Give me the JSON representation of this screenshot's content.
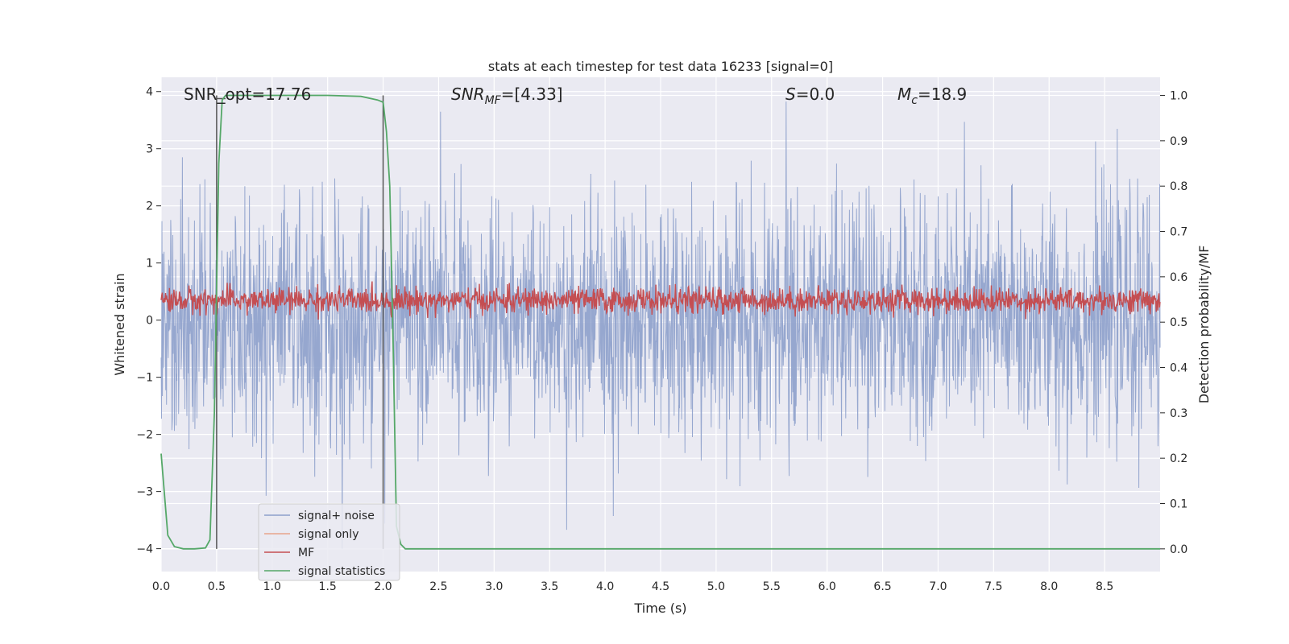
{
  "chart_data": {
    "type": "line",
    "title": "stats at each timestep for test data 16233 [signal=0]",
    "xlabel": "Time (s)",
    "ylabel_left": "Whitened strain",
    "ylabel_right": "Detection probability/MF",
    "xlim": [
      0.0,
      9.0
    ],
    "ylim_left": [
      -4.4,
      4.25
    ],
    "ylim_right": [
      -0.05,
      1.04
    ],
    "xticks": [
      "0.0",
      "0.5",
      "1.0",
      "1.5",
      "2.0",
      "2.5",
      "3.0",
      "3.5",
      "4.0",
      "4.5",
      "5.0",
      "5.5",
      "6.0",
      "6.5",
      "7.0",
      "7.5",
      "8.0",
      "8.5"
    ],
    "yticks_left": [
      "4",
      "3",
      "2",
      "1",
      "0",
      "−1",
      "−2",
      "−3",
      "−4"
    ],
    "yticks_right": [
      "1.0",
      "0.9",
      "0.8",
      "0.7",
      "0.6",
      "0.5",
      "0.4",
      "0.3",
      "0.2",
      "0.1",
      "0.0"
    ],
    "grid": true,
    "legend_position": "lower-left",
    "annotations": {
      "snr_opt": "SNR_opt=17.76",
      "snr_mf_main": "SNR",
      "snr_mf_sub": "MF",
      "snr_mf_value": "=[4.33]",
      "s_symbol": "S",
      "s_value": "=0.0",
      "mc_main": "M",
      "mc_sub": "c",
      "mc_value": "=18.9"
    },
    "series": [
      {
        "name": "signal+ noise",
        "color": "#8da0cb",
        "axis": "left",
        "description_values": "whitened noise, approx range [-4, 3.9]"
      },
      {
        "name": "signal only",
        "color": "#e8a58b",
        "axis": "left"
      },
      {
        "name": "MF",
        "color": "#c44e52",
        "axis": "right",
        "approx_range": [
          0.5,
          0.6
        ]
      },
      {
        "name": "signal statistics",
        "color": "#55a868",
        "axis": "right",
        "x": [
          0.0,
          0.06,
          0.12,
          0.2,
          0.3,
          0.4,
          0.44,
          0.48,
          0.52,
          0.55,
          0.58,
          0.65,
          1.0,
          1.5,
          1.8,
          1.95,
          2.0,
          2.03,
          2.06,
          2.09,
          2.12,
          2.16,
          2.2,
          3.0,
          4.0,
          5.0,
          6.0,
          7.0,
          8.0,
          9.0
        ],
        "y": [
          0.21,
          0.03,
          0.005,
          0.0,
          0.0,
          0.002,
          0.02,
          0.3,
          0.85,
          0.99,
          1.0,
          1.0,
          1.0,
          1.0,
          0.998,
          0.99,
          0.985,
          0.92,
          0.8,
          0.45,
          0.05,
          0.01,
          0.0,
          0.0,
          0.0,
          0.0,
          0.0,
          0.0,
          0.0,
          0.0
        ]
      }
    ],
    "vlines_x": [
      0.5,
      2.0
    ]
  }
}
